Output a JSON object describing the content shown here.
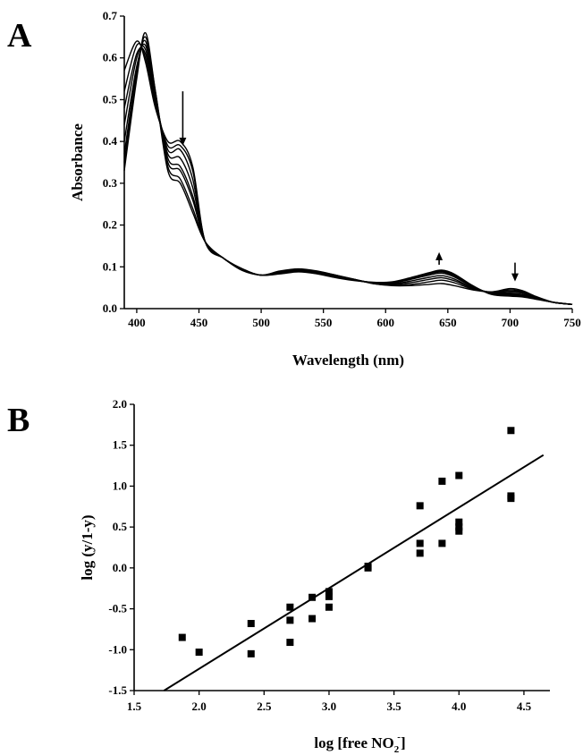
{
  "chart_data": [
    {
      "panel": "A",
      "type": "line",
      "xlabel": "Wavelength (nm)",
      "ylabel": "Absorbance",
      "xlim": [
        390,
        750
      ],
      "ylim": [
        0.0,
        0.7
      ],
      "xticks": [
        400,
        450,
        500,
        550,
        600,
        650,
        700,
        750
      ],
      "yticks": [
        0.0,
        0.1,
        0.2,
        0.3,
        0.4,
        0.5,
        0.6,
        0.7
      ],
      "grid": false,
      "x": [
        390,
        400,
        407,
        415,
        425,
        435,
        445,
        455,
        470,
        485,
        500,
        515,
        530,
        545,
        560,
        575,
        590,
        605,
        620,
        635,
        645,
        655,
        670,
        685,
        700,
        710,
        720,
        735,
        750
      ],
      "series": [
        {
          "values": [
            0.33,
            0.55,
            0.66,
            0.52,
            0.33,
            0.3,
            0.23,
            0.16,
            0.12,
            0.095,
            0.08,
            0.09,
            0.095,
            0.09,
            0.08,
            0.07,
            0.06,
            0.055,
            0.055,
            0.058,
            0.06,
            0.055,
            0.045,
            0.04,
            0.048,
            0.043,
            0.03,
            0.015,
            0.01
          ]
        },
        {
          "values": [
            0.35,
            0.56,
            0.65,
            0.52,
            0.34,
            0.31,
            0.24,
            0.16,
            0.12,
            0.095,
            0.08,
            0.089,
            0.094,
            0.089,
            0.08,
            0.07,
            0.06,
            0.056,
            0.058,
            0.064,
            0.068,
            0.062,
            0.047,
            0.04,
            0.045,
            0.041,
            0.029,
            0.015,
            0.01
          ]
        },
        {
          "values": [
            0.37,
            0.57,
            0.64,
            0.51,
            0.35,
            0.33,
            0.26,
            0.16,
            0.12,
            0.095,
            0.08,
            0.088,
            0.093,
            0.088,
            0.079,
            0.07,
            0.061,
            0.058,
            0.062,
            0.07,
            0.074,
            0.067,
            0.049,
            0.039,
            0.042,
            0.039,
            0.028,
            0.015,
            0.01
          ]
        },
        {
          "values": [
            0.4,
            0.58,
            0.63,
            0.51,
            0.36,
            0.34,
            0.27,
            0.16,
            0.12,
            0.094,
            0.08,
            0.087,
            0.092,
            0.087,
            0.078,
            0.069,
            0.061,
            0.059,
            0.066,
            0.075,
            0.079,
            0.071,
            0.05,
            0.038,
            0.039,
            0.037,
            0.027,
            0.015,
            0.01
          ]
        },
        {
          "values": [
            0.44,
            0.6,
            0.62,
            0.5,
            0.37,
            0.36,
            0.29,
            0.16,
            0.12,
            0.093,
            0.08,
            0.086,
            0.091,
            0.086,
            0.077,
            0.069,
            0.062,
            0.061,
            0.07,
            0.08,
            0.085,
            0.076,
            0.052,
            0.037,
            0.036,
            0.034,
            0.026,
            0.015,
            0.01
          ]
        },
        {
          "values": [
            0.48,
            0.61,
            0.61,
            0.5,
            0.38,
            0.38,
            0.31,
            0.16,
            0.12,
            0.092,
            0.08,
            0.085,
            0.09,
            0.085,
            0.076,
            0.068,
            0.062,
            0.062,
            0.072,
            0.083,
            0.088,
            0.079,
            0.053,
            0.036,
            0.034,
            0.032,
            0.025,
            0.015,
            0.01
          ]
        },
        {
          "values": [
            0.52,
            0.63,
            0.6,
            0.49,
            0.39,
            0.39,
            0.33,
            0.16,
            0.12,
            0.092,
            0.08,
            0.084,
            0.089,
            0.084,
            0.075,
            0.068,
            0.063,
            0.063,
            0.073,
            0.085,
            0.09,
            0.081,
            0.054,
            0.035,
            0.032,
            0.03,
            0.024,
            0.015,
            0.01
          ]
        },
        {
          "values": [
            0.57,
            0.64,
            0.59,
            0.48,
            0.4,
            0.4,
            0.34,
            0.16,
            0.12,
            0.091,
            0.08,
            0.083,
            0.088,
            0.083,
            0.074,
            0.067,
            0.063,
            0.064,
            0.074,
            0.086,
            0.092,
            0.083,
            0.055,
            0.034,
            0.03,
            0.028,
            0.023,
            0.015,
            0.01
          ]
        }
      ],
      "annotations": [
        {
          "type": "arrow",
          "x": 437,
          "direction": "down",
          "from_y": 0.52,
          "to_y": 0.39
        },
        {
          "type": "arrow",
          "x": 643,
          "direction": "up",
          "from_y": 0.105,
          "to_y": 0.135
        },
        {
          "type": "arrow",
          "x": 704,
          "direction": "down",
          "from_y": 0.11,
          "to_y": 0.065
        }
      ]
    },
    {
      "panel": "B",
      "type": "scatter",
      "xlabel": "log [free NO",
      "xlabel_sub": "2",
      "xlabel_sup": "-",
      "xlabel_end": "]",
      "ylabel": "log (y/1-y)",
      "xlim": [
        1.5,
        4.7
      ],
      "ylim": [
        -1.5,
        2.0
      ],
      "xticks": [
        "1.5",
        "2.0",
        "2.5",
        "3.0",
        "3.5",
        "4.0",
        "4.5"
      ],
      "yticks": [
        "-1.5",
        "-1.0",
        "-0.5",
        "0.0",
        "0.5",
        "1.0",
        "1.5",
        "2.0"
      ],
      "grid": false,
      "points": [
        [
          1.87,
          -0.85
        ],
        [
          2.0,
          -1.03
        ],
        [
          2.4,
          -0.68
        ],
        [
          2.4,
          -1.05
        ],
        [
          2.7,
          -0.48
        ],
        [
          2.7,
          -0.64
        ],
        [
          2.7,
          -0.91
        ],
        [
          2.87,
          -0.36
        ],
        [
          2.87,
          -0.62
        ],
        [
          3.0,
          -0.29
        ],
        [
          3.0,
          -0.35
        ],
        [
          3.0,
          -0.48
        ],
        [
          3.3,
          0.02
        ],
        [
          3.3,
          0.0
        ],
        [
          3.7,
          0.76
        ],
        [
          3.7,
          0.3
        ],
        [
          3.7,
          0.18
        ],
        [
          3.87,
          1.06
        ],
        [
          3.87,
          0.3
        ],
        [
          4.0,
          1.13
        ],
        [
          4.0,
          0.56
        ],
        [
          4.0,
          0.5
        ],
        [
          4.0,
          0.45
        ],
        [
          4.4,
          1.68
        ],
        [
          4.4,
          0.88
        ],
        [
          4.4,
          0.85
        ]
      ],
      "fit_line": {
        "x": [
          1.73,
          4.65
        ],
        "y": [
          -1.5,
          1.38
        ]
      }
    }
  ],
  "panels": {
    "a": {
      "letter": "A"
    },
    "b": {
      "letter": "B"
    }
  }
}
